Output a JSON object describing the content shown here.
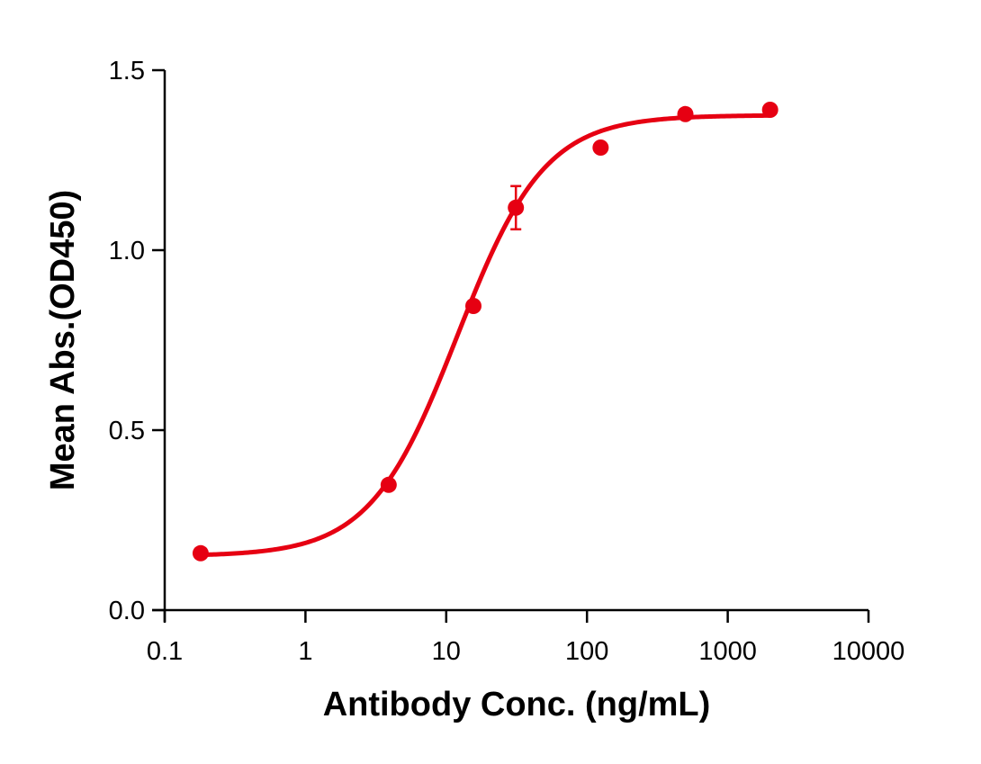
{
  "chart_data": {
    "type": "scatter",
    "title": "",
    "xlabel": "Antibody Conc. (ng/mL)",
    "ylabel": "Mean Abs.(OD450)",
    "xscale": "log",
    "xlim": [
      0.1,
      10000
    ],
    "ylim": [
      0.0,
      1.5
    ],
    "xticks": [
      0.1,
      1,
      10,
      100,
      1000,
      10000
    ],
    "xtick_labels": [
      "0.1",
      "1",
      "10",
      "100",
      "1000",
      "10000"
    ],
    "yticks": [
      0.0,
      0.5,
      1.0,
      1.5
    ],
    "ytick_labels": [
      "0.0",
      "0.5",
      "1.0",
      "1.5"
    ],
    "grid": false,
    "legend": null,
    "series": [
      {
        "name": "Mean Abs.",
        "color": "#E60012",
        "x": [
          0.18,
          3.9,
          15.6,
          31.25,
          125,
          500,
          2000
        ],
        "y": [
          0.158,
          0.348,
          0.845,
          1.118,
          1.285,
          1.378,
          1.39
        ],
        "yerr": [
          0,
          0,
          0,
          0.06,
          0,
          0,
          0
        ]
      }
    ],
    "fit": {
      "model": "4PL",
      "bottom": 0.15,
      "top": 1.375,
      "ec50": 12,
      "hill": 1.4,
      "x_range": [
        0.18,
        2000
      ],
      "color": "#E60012"
    }
  }
}
